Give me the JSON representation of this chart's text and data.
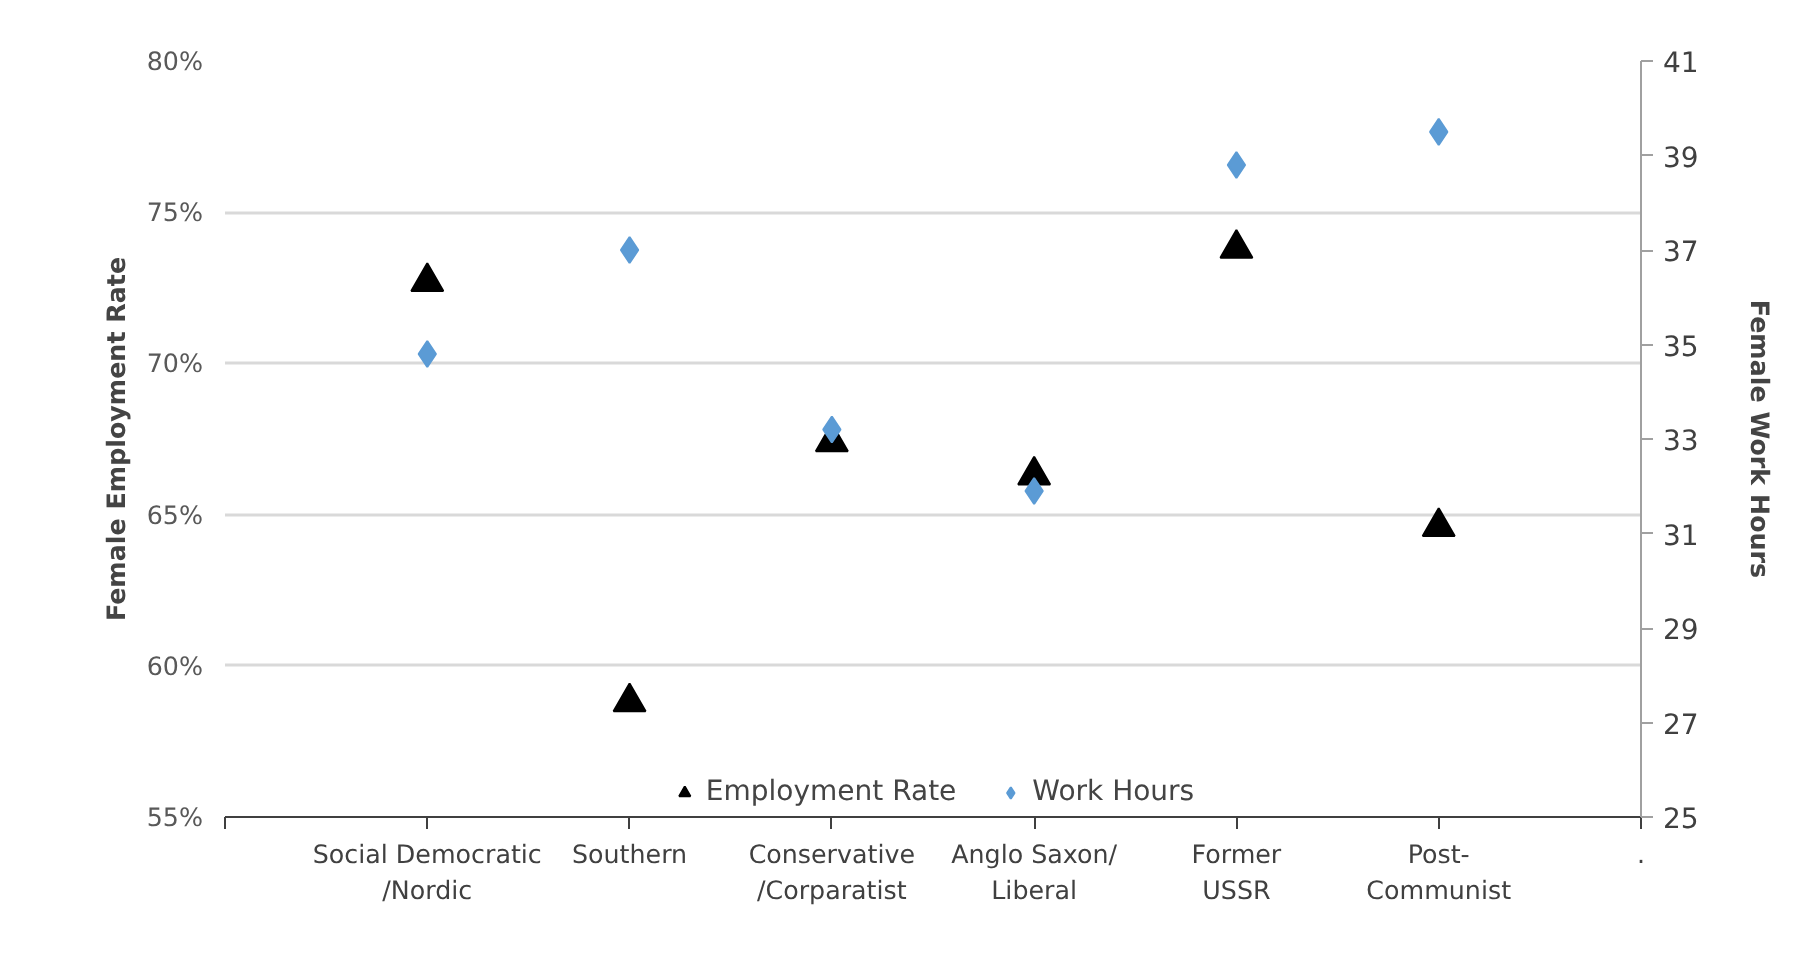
{
  "chart_data": {
    "type": "scatter",
    "categories": [
      null,
      "Social Democratic\n/Nordic",
      "Southern",
      "Conservative\n/Corparatist",
      "Anglo Saxon/\nLiberal",
      "Former\nUSSR",
      "Post-\nCommunist",
      "."
    ],
    "ylabel": "Female Employment Rate",
    "y2label": "Female Work Hours",
    "series": [
      {
        "name": "Employment Rate",
        "color": "#000000",
        "marker": "triangle",
        "values": [
          null,
          72.7,
          58.8,
          67.4,
          66.3,
          73.8,
          64.6,
          null
        ]
      },
      {
        "name": "Work Hours",
        "color": "#5b9bd5",
        "marker": "diamond",
        "axis": "y2",
        "values": [
          null,
          34.8,
          37.0,
          33.2,
          31.9,
          38.8,
          39.5,
          null
        ]
      }
    ],
    "ylim": [
      55,
      80
    ],
    "yticks": [
      {
        "value": 55,
        "label": "55%"
      },
      {
        "value": 60,
        "label": "60%"
      },
      {
        "value": 65,
        "label": "65%"
      },
      {
        "value": 70,
        "label": "70%"
      },
      {
        "value": 75,
        "label": "75%"
      },
      {
        "value": 80,
        "label": "80%"
      }
    ],
    "y2lim": [
      25,
      41
    ],
    "y2ticks": [
      25,
      27,
      29,
      31,
      33,
      35,
      37,
      39,
      41
    ],
    "grid": "y",
    "legend": "bottom"
  }
}
